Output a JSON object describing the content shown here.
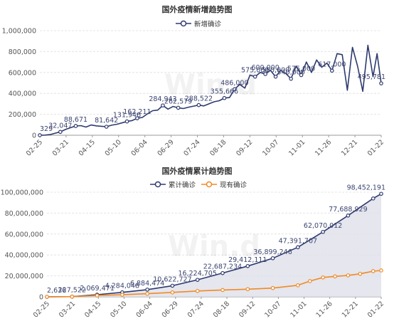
{
  "watermark": "Win.d",
  "chart_data": [
    {
      "type": "line",
      "title": "国外疫情新增趋势图",
      "ylim": [
        0,
        1000000
      ],
      "yticks": [
        "0",
        "200,000",
        "400,000",
        "600,000",
        "800,000",
        "1,000,000"
      ],
      "ytick_values": [
        0,
        200000,
        400000,
        600000,
        800000,
        1000000
      ],
      "xticks": [
        "02-25",
        "03-21",
        "04-15",
        "05-10",
        "06-04",
        "06-29",
        "07-24",
        "08-18",
        "09-12",
        "10-07",
        "11-01",
        "11-26",
        "12-21",
        "01-22"
      ],
      "legend_position": "top-center",
      "series": [
        {
          "name": "新增确诊",
          "color": "#2e3a6e",
          "x": [
            0,
            5,
            10,
            15,
            20,
            25,
            30,
            35,
            40,
            45,
            50,
            55,
            60,
            65,
            70,
            75,
            80,
            85,
            90,
            95,
            100,
            105,
            110,
            115,
            120,
            125,
            130,
            135,
            140,
            145,
            150,
            155,
            160,
            165,
            170,
            175,
            180,
            185,
            190,
            195,
            200,
            205,
            210,
            215,
            220,
            225,
            230,
            235,
            240,
            245,
            250,
            255,
            260,
            265,
            270,
            275,
            280,
            285,
            290,
            295,
            300,
            305,
            310,
            315,
            320,
            325,
            329,
            333
          ],
          "values": [
            329,
            1500,
            6000,
            20000,
            32047,
            55000,
            72000,
            88671,
            92000,
            78000,
            98000,
            90000,
            86000,
            81642,
            96000,
            105000,
            118000,
            131946,
            140000,
            162211,
            170000,
            205000,
            235000,
            240000,
            284943,
            250000,
            275000,
            262579,
            255000,
            268000,
            278000,
            288522,
            280000,
            300000,
            320000,
            330000,
            355666,
            360000,
            440000,
            486000,
            450000,
            575000,
            560000,
            600000,
            585000,
            620000,
            560000,
            620000,
            590000,
            540000,
            660000,
            575000,
            700000,
            600000,
            720000,
            650000,
            690000,
            617000,
            780000,
            770000,
            430000,
            840000,
            660000,
            420000,
            860000,
            560000,
            780000,
            495781
          ],
          "data_labels": [
            {
              "x": 0,
              "text": "329"
            },
            {
              "x": 20,
              "text": "32,047"
            },
            {
              "x": 35,
              "text": "88,671"
            },
            {
              "x": 65,
              "text": "81,642"
            },
            {
              "x": 85,
              "text": "131,946"
            },
            {
              "x": 95,
              "text": "162,211"
            },
            {
              "x": 120,
              "text": "284,943"
            },
            {
              "x": 135,
              "text": "262,579"
            },
            {
              "x": 155,
              "text": "288,522"
            },
            {
              "x": 180,
              "text": "355,666"
            },
            {
              "x": 190,
              "text": "486,000"
            },
            {
              "x": 210,
              "text": "575,000"
            },
            {
              "x": 220,
              "text": "600,000"
            },
            {
              "x": 230,
              "text": "560,000"
            },
            {
              "x": 245,
              "text": "540,000"
            },
            {
              "x": 255,
              "text": "575,000"
            },
            {
              "x": 285,
              "text": "617,000"
            },
            {
              "x": 333,
              "text": "495,781"
            }
          ]
        }
      ]
    },
    {
      "type": "line",
      "title": "国外疫情累计趋势图",
      "ylim": [
        0,
        100000000
      ],
      "yticks": [
        "0",
        "20,000,000",
        "40,000,000",
        "60,000,000",
        "80,000,000",
        "100,000,000"
      ],
      "ytick_values": [
        0,
        20000000,
        40000000,
        60000000,
        80000000,
        100000000
      ],
      "xticks": [
        "02-25",
        "03-21",
        "04-15",
        "05-10",
        "06-04",
        "06-29",
        "07-24",
        "08-18",
        "09-12",
        "10-07",
        "11-01",
        "11-26",
        "12-21",
        "01-22"
      ],
      "legend_position": "top-center",
      "series": [
        {
          "name": "累计确诊",
          "color": "#2e3a6e",
          "area": true,
          "x": [
            0,
            25,
            50,
            75,
            100,
            125,
            150,
            175,
            200,
            225,
            250,
            275,
            300,
            325,
            333
          ],
          "values": [
            2636,
            227522,
            2069471,
            4284048,
            6884474,
            10622727,
            16224705,
            22687234,
            29412111,
            36899246,
            47391707,
            62070012,
            77688929,
            94000000,
            98452191
          ],
          "data_labels": [
            {
              "x": 0,
              "text": "2,636"
            },
            {
              "x": 25,
              "text": "227,522"
            },
            {
              "x": 50,
              "text": "2,069,471"
            },
            {
              "x": 75,
              "text": "4,284,048"
            },
            {
              "x": 100,
              "text": "6,884,474"
            },
            {
              "x": 125,
              "text": "10,622,727"
            },
            {
              "x": 150,
              "text": "16,224,705"
            },
            {
              "x": 175,
              "text": "22,687,234"
            },
            {
              "x": 200,
              "text": "29,412,111"
            },
            {
              "x": 225,
              "text": "36,899,246"
            },
            {
              "x": 250,
              "text": "47,391,707"
            },
            {
              "x": 275,
              "text": "62,070,012"
            },
            {
              "x": 300,
              "text": "77,688,929"
            },
            {
              "x": 333,
              "text": "98,452,191"
            }
          ]
        },
        {
          "name": "现有确诊",
          "color": "#f08a24",
          "area": false,
          "x": [
            0,
            25,
            50,
            75,
            100,
            125,
            150,
            175,
            200,
            225,
            250,
            262,
            275,
            287,
            300,
            312,
            325,
            333
          ],
          "values": [
            1000,
            180000,
            1300000,
            2000000,
            3000000,
            4200000,
            5600000,
            6500000,
            7300000,
            8400000,
            11000000,
            15000000,
            18500000,
            19500000,
            20500000,
            22000000,
            24500000,
            25200000
          ],
          "data_labels": []
        }
      ]
    }
  ]
}
